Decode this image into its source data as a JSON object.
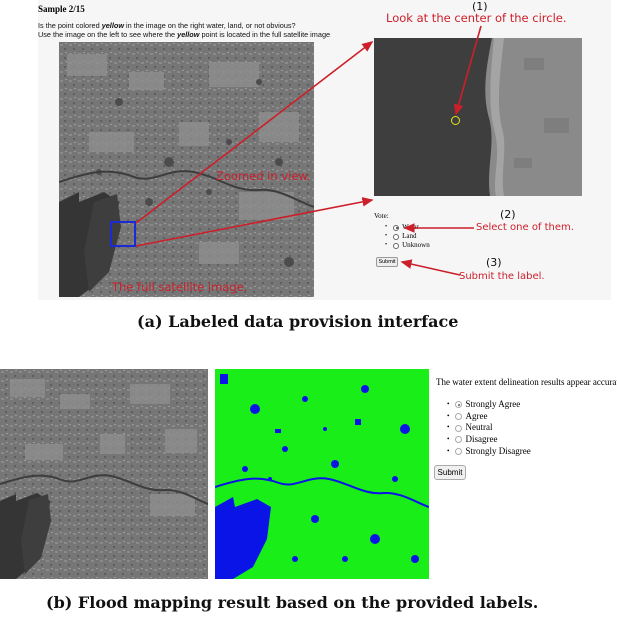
{
  "panel_a": {
    "sample_title": "Sample 2/15",
    "instruction_line1_pre": "Is the point colored ",
    "instruction_line1_em": "yellow",
    "instruction_line1_post": " in the image on the right water, land, or not obvious?",
    "instruction_line2_pre": "Use the image on the left to see where the ",
    "instruction_line2_em": "yellow",
    "instruction_line2_post": " point is located in the full satellite image",
    "vote_label": "Vote:",
    "vote_options": [
      {
        "label": "Water",
        "selected": true
      },
      {
        "label": "Land",
        "selected": false
      },
      {
        "label": "Unknown",
        "selected": false
      }
    ],
    "submit_label": "Submit",
    "annotations": {
      "step1_number": "(1)",
      "step1_text": "Look at the center of the circle.",
      "step2_number": "(2)",
      "step2_text": "Select one of them.",
      "step3_number": "(3)",
      "step3_text": "Submit the label.",
      "zoomed_text": "Zoomed in view.",
      "full_text": "The full satellite image."
    },
    "caption": "(a) Labeled data provision interface"
  },
  "panel_b": {
    "question": "The water extent delineation results appear accurate:",
    "options": [
      {
        "label": "Strongly Agree",
        "selected": true
      },
      {
        "label": "Agree",
        "selected": false
      },
      {
        "label": "Neutral",
        "selected": false
      },
      {
        "label": "Disagree",
        "selected": false
      },
      {
        "label": "Strongly Disagree",
        "selected": false
      }
    ],
    "submit_label": "Submit",
    "caption": "(b) Flood mapping result based on the provided labels."
  },
  "colors": {
    "annotation_red": "#cc1f2a",
    "water_blue": "#0a14e6",
    "land_green": "#19ee19",
    "selection_box": "#1a2ad6",
    "point_yellow": "#e6e61a"
  }
}
